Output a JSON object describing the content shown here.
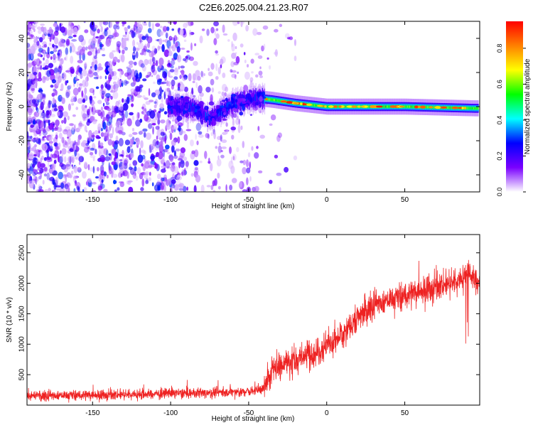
{
  "figure": {
    "title": "C2E6.2025.004.21.23.R07"
  },
  "chart_data": [
    {
      "type": "heatmap",
      "xlabel": "Height of straight line (km)",
      "ylabel": "Frequency (Hz)",
      "xlim": [
        -192,
        98
      ],
      "ylim": [
        -50,
        50
      ],
      "xticks": [
        -150,
        -100,
        -50,
        0,
        50
      ],
      "yticks": [
        -40,
        -20,
        0,
        20,
        40
      ],
      "grid": false,
      "colorbar": {
        "label": "Normalized spectral amplitude",
        "range": [
          0.0,
          0.95
        ],
        "ticks": [
          0.0,
          0.2,
          0.4,
          0.6,
          0.8
        ],
        "tick_labels": [
          "0.0",
          "0.2",
          "0.4",
          "0.6",
          "0.8"
        ],
        "colormap": [
          "#ffffff",
          "#7a00ff",
          "#0000ff",
          "#00ffff",
          "#00ff00",
          "#ffff00",
          "#ff8000",
          "#ff0000"
        ]
      },
      "ridge": {
        "description_points": [
          {
            "x": -100,
            "y": 0
          },
          {
            "x": -85,
            "y": -1
          },
          {
            "x": -75,
            "y": -7
          },
          {
            "x": -60,
            "y": 2
          },
          {
            "x": -45,
            "y": 5
          },
          {
            "x": -35,
            "y": 4
          },
          {
            "x": -20,
            "y": 2
          },
          {
            "x": 0,
            "y": 0
          },
          {
            "x": 50,
            "y": 0
          },
          {
            "x": 95,
            "y": -1
          }
        ]
      }
    },
    {
      "type": "line",
      "xlabel": "Height of straight line (km)",
      "ylabel": "SNR (10 * v/v)",
      "xlim": [
        -192,
        98
      ],
      "ylim": [
        0,
        2800
      ],
      "xticks": [
        -150,
        -100,
        -50,
        0,
        50
      ],
      "yticks": [
        500,
        1000,
        1500,
        2000,
        2500
      ],
      "grid": false,
      "series": [
        {
          "color": "#ff0000",
          "envelope": [
            {
              "x": -190,
              "y": 150
            },
            {
              "x": -100,
              "y": 190
            },
            {
              "x": -50,
              "y": 220
            },
            {
              "x": -40,
              "y": 270
            },
            {
              "x": -35,
              "y": 600
            },
            {
              "x": -20,
              "y": 750
            },
            {
              "x": -5,
              "y": 900
            },
            {
              "x": 10,
              "y": 1150
            },
            {
              "x": 20,
              "y": 1450
            },
            {
              "x": 30,
              "y": 1650
            },
            {
              "x": 50,
              "y": 1800
            },
            {
              "x": 70,
              "y": 1950
            },
            {
              "x": 85,
              "y": 2050
            },
            {
              "x": 90,
              "y": 2200
            },
            {
              "x": 95,
              "y": 2050
            }
          ]
        }
      ]
    }
  ]
}
